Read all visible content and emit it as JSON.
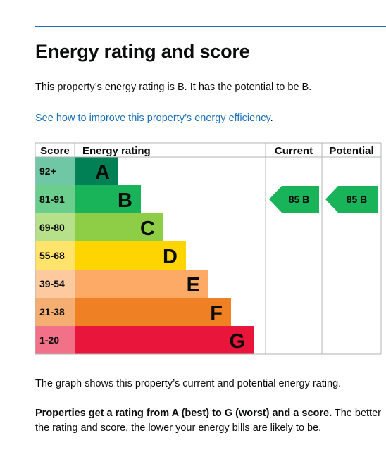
{
  "page": {
    "title": "Energy rating and score",
    "intro": "This property’s energy rating is B. It has the potential to be B.",
    "link_text": "See how to improve this property’s energy efficiency",
    "link_suffix": ".",
    "graph_caption": "The graph shows this property’s current and potential energy rating.",
    "explain_bold": "Properties get a rating from A (best) to G (worst) and a score.",
    "explain_rest": " The better the rating and score, the lower your energy bills are likely to be."
  },
  "chart_data": {
    "type": "table",
    "headers": {
      "score": "Score",
      "rating": "Energy rating",
      "current": "Current",
      "potential": "Potential"
    },
    "bands": [
      {
        "letter": "A",
        "score": "92+",
        "color": "#008054",
        "score_bg": "#70c7a6"
      },
      {
        "letter": "B",
        "score": "81-91",
        "color": "#19b459",
        "score_bg": "#6cce8c"
      },
      {
        "letter": "C",
        "score": "69-80",
        "color": "#8dce46",
        "score_bg": "#b7e08a"
      },
      {
        "letter": "D",
        "score": "55-68",
        "color": "#ffd500",
        "score_bg": "#ffe36b"
      },
      {
        "letter": "E",
        "score": "39-54",
        "color": "#fcaa65",
        "score_bg": "#fdcaa0"
      },
      {
        "letter": "F",
        "score": "21-38",
        "color": "#ef8023",
        "score_bg": "#f5ae72"
      },
      {
        "letter": "G",
        "score": "1-20",
        "color": "#e9153b",
        "score_bg": "#f27188"
      }
    ],
    "current": {
      "score": 85,
      "band": "B",
      "label": "85  B"
    },
    "potential": {
      "score": 85,
      "band": "B",
      "label": "85  B"
    }
  }
}
